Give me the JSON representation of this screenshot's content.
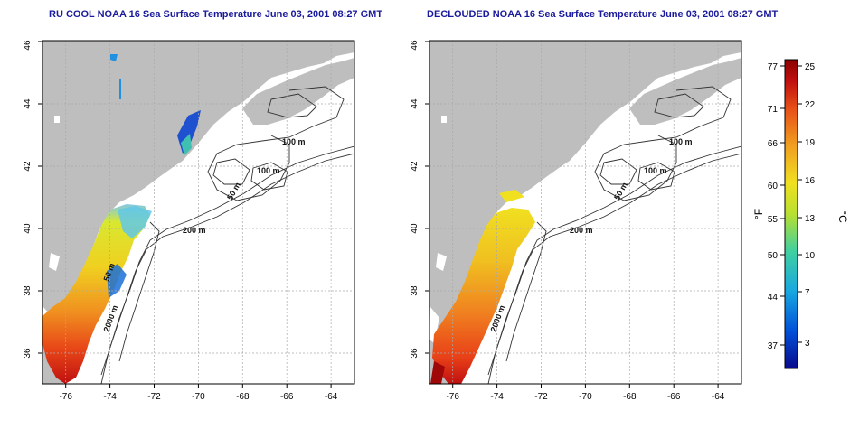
{
  "panels": [
    {
      "title": "RU COOL NOAA 16 Sea Surface Temperature June 03, 2001 08:27 GMT",
      "contour_labels": [
        "100 m",
        "100 m",
        "50 m",
        "200 m",
        "50 m",
        "2000 m"
      ]
    },
    {
      "title": "DECLOUDED NOAA 16 Sea Surface Temperature June 03, 2001 08:27 GMT",
      "contour_labels": [
        "100 m",
        "100 m",
        "50 m",
        "200 m",
        "2000 m"
      ]
    }
  ],
  "axes": {
    "x_ticks": [
      "-76",
      "-74",
      "-72",
      "-70",
      "-68",
      "-66",
      "-64"
    ],
    "y_ticks": [
      "36",
      "38",
      "40",
      "42",
      "44",
      "46"
    ]
  },
  "colorbar": {
    "f_ticks": [
      "77",
      "71",
      "66",
      "60",
      "55",
      "50",
      "44",
      "37"
    ],
    "c_ticks": [
      "25",
      "22",
      "19",
      "16",
      "13",
      "10",
      "7",
      "3"
    ],
    "f_unit": "°F",
    "c_unit": "°C",
    "colors": [
      "#0a0a8c",
      "#0050d8",
      "#18a8e0",
      "#40d0a0",
      "#b8e030",
      "#f0e020",
      "#f0a020",
      "#e85018",
      "#c01010",
      "#8c0000"
    ]
  },
  "colors": {
    "land": "#bebebe",
    "title": "#1a1a9c",
    "contour": "#333333",
    "grid": "#aaaaaa"
  }
}
